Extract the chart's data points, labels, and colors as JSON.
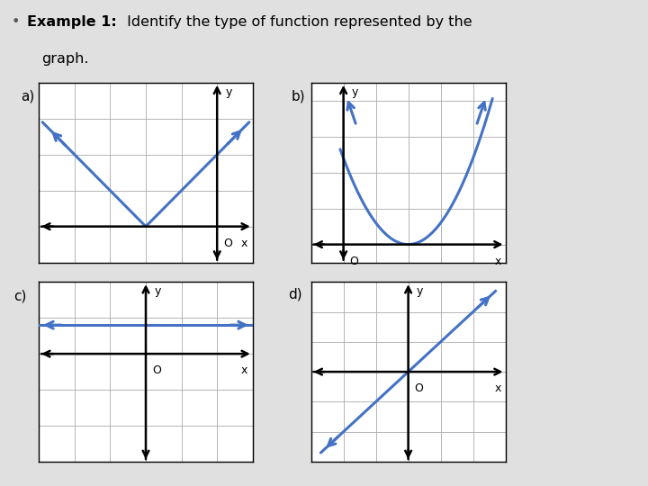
{
  "bg_color": "#e0e0e0",
  "graph_bg": "#ffffff",
  "line_color": "#4472C4",
  "axis_color": "#000000",
  "grid_color": "#aaaaaa",
  "title_bullet": "•",
  "title_bold": "Example 1:",
  "title_rest": " Identify the type of function represented by the",
  "title_line2": "   graph.",
  "labels": [
    "a)",
    "b)",
    "c)",
    "d)"
  ]
}
